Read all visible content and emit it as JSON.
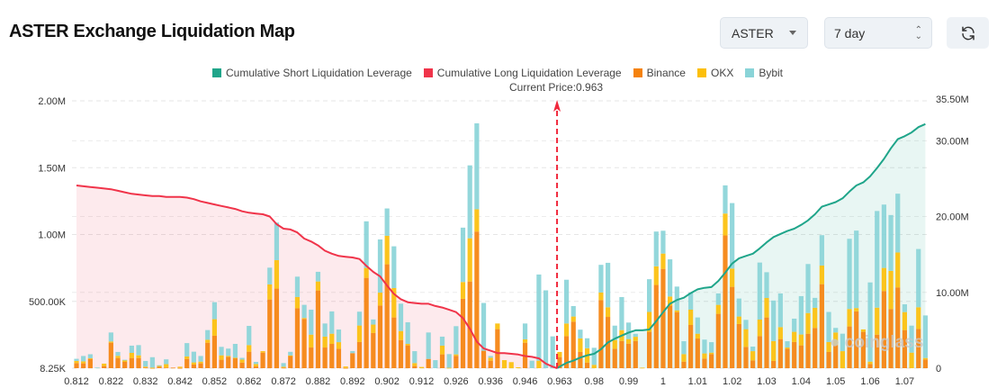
{
  "header": {
    "title": "ASTER Exchange Liquidation Map"
  },
  "controls": {
    "coin_select": {
      "value": "ASTER"
    },
    "range_select": {
      "value": "7 day"
    },
    "refresh_icon": "refresh-icon"
  },
  "watermark": "coinglass",
  "chart_data": {
    "type": "bar",
    "stacked": true,
    "title": "",
    "legend": {
      "placement": "top-center",
      "items": [
        {
          "name": "Cumulative Short Liquidation Leverage",
          "color": "#1fa58a"
        },
        {
          "name": "Cumulative Long Liquidation Leverage",
          "color": "#f0344a"
        },
        {
          "name": "Binance",
          "color": "#f5820d"
        },
        {
          "name": "OKX",
          "color": "#fcbf0a"
        },
        {
          "name": "Bybit",
          "color": "#8ad4d8"
        }
      ]
    },
    "current_price_label": "Current Price:0.963",
    "current_price": 0.963,
    "x_tick_labels": [
      "0.812",
      "0.822",
      "0.832",
      "0.842",
      "0.852",
      "0.862",
      "0.872",
      "0.882",
      "0.892",
      "0.902",
      "0.912",
      "0.926",
      "0.936",
      "0.946",
      "0.963",
      "0.98",
      "0.99",
      "1",
      "1.01",
      "1.02",
      "1.03",
      "1.04",
      "1.05",
      "1.06",
      "1.07"
    ],
    "y_left": {
      "ticks": [
        "8.25K",
        "500.00K",
        "1.00M",
        "1.50M",
        "2.00M"
      ],
      "range": [
        8250,
        2000000
      ]
    },
    "y_right": {
      "ticks": [
        "0",
        "10.00M",
        "20.00M",
        "30.00M",
        "35.50M"
      ],
      "range": [
        0,
        35500000
      ]
    },
    "grid": true,
    "series": [
      {
        "name": "Binance",
        "values": [
          38000,
          36000,
          69000,
          0,
          16000,
          190000,
          76000,
          47000,
          76000,
          76000,
          5000,
          2000,
          11000,
          5000,
          4000,
          2000,
          69000,
          27000,
          36000,
          190000,
          242000,
          63000,
          85000,
          76000,
          42000,
          123000,
          13000,
          116000,
          512000,
          593000,
          4000,
          92000,
          447000,
          367000,
          154000,
          579000,
          154000,
          181000,
          145000,
          2000,
          112000,
          195000,
          673000,
          262000,
          467000,
          774000,
          378000,
          210000,
          170000,
          16000,
          0,
          69000,
          0,
          103000,
          0,
          92000,
          517000,
          646000,
          1018000,
          130000,
          56000,
          291000,
          0,
          0,
          0,
          190000,
          0,
          0,
          0,
          0,
          83000,
          239000,
          347000,
          121000,
          42000,
          0,
          508000,
          382000,
          145000,
          203000,
          183000,
          203000,
          0,
          271000,
          620000,
          740000,
          467000,
          418000,
          49000,
          322000,
          221000,
          72000,
          105000,
          405000,
          989000,
          606000,
          329000,
          159000,
          58000,
          239000,
          378000,
          54000,
          217000,
          145000,
          195000,
          170000,
          257000,
          300000,
          626000,
          121000,
          172000,
          0,
          311000,
          423000,
          271000,
          31000,
          250000,
          575000,
          441000,
          602000,
          284000,
          0,
          293000,
          65000
        ]
      },
      {
        "name": "OKX",
        "values": [
          16000,
          15000,
          5000,
          0,
          18000,
          9000,
          16000,
          13000,
          38000,
          20000,
          7000,
          2000,
          9000,
          25000,
          0,
          9000,
          18000,
          16000,
          13000,
          22000,
          123000,
          33000,
          7000,
          2000,
          22000,
          49000,
          18000,
          11000,
          112000,
          212000,
          7000,
          3000,
          83000,
          7000,
          96000,
          67000,
          81000,
          76000,
          49000,
          11000,
          0,
          123000,
          74000,
          63000,
          96000,
          212000,
          219000,
          67000,
          11000,
          22000,
          9000,
          0,
          0,
          65000,
          3000,
          11000,
          125000,
          322000,
          166000,
          0,
          22000,
          42000,
          60000,
          45000,
          7000,
          25000,
          0,
          56000,
          0,
          0,
          38000,
          94000,
          38000,
          101000,
          107000,
          25000,
          56000,
          72000,
          65000,
          81000,
          34000,
          31000,
          4000,
          148000,
          139000,
          114000,
          67000,
          13000,
          56000,
          114000,
          36000,
          38000,
          11000,
          67000,
          163000,
          136000,
          56000,
          132000,
          69000,
          123000,
          145000,
          148000,
          89000,
          9000,
          76000,
          81000,
          154000,
          150000,
          139000,
          74000,
          94000,
          127000,
          130000,
          25000,
          18000,
          18000,
          201000,
          172000,
          284000,
          260000,
          134000,
          116000,
          161000,
          11000
        ]
      },
      {
        "name": "Bybit",
        "values": [
          16000,
          40000,
          30000,
          5000,
          0,
          67000,
          29000,
          3000,
          54000,
          76000,
          42000,
          78000,
          2000,
          36000,
          0,
          0,
          100000,
          80000,
          42000,
          72000,
          127000,
          63000,
          54000,
          103000,
          13000,
          143000,
          16000,
          0,
          125000,
          280000,
          27000,
          27000,
          152000,
          98000,
          186000,
          72000,
          98000,
          166000,
          94000,
          0,
          16000,
          103000,
          347000,
          38000,
          396000,
          204000,
          311000,
          204000,
          161000,
          89000,
          0,
          197000,
          60000,
          67000,
          102000,
          210000,
          405000,
          543000,
          640000,
          356000,
          13000,
          0,
          0,
          0,
          0,
          118000,
          56000,
          642000,
          580000,
          237000,
          0,
          326000,
          78000,
          65000,
          74000,
          127000,
          206000,
          331000,
          107000,
          246000,
          123000,
          22000,
          0,
          244000,
          259000,
          170000,
          277000,
          177000,
          96000,
          127000,
          121000,
          103000,
          78000,
          85000,
          210000,
          488000,
          134000,
          69000,
          34000,
          425000,
          192000,
          302000,
          251000,
          47000,
          98000,
          286000,
          365000,
          74000,
          226000,
          224000,
          34000,
          130000,
          523000,
          577000,
          0,
          590000,
          720000,
          472000,
          416000,
          438000,
          58000,
          201000,
          434000,
          317000
        ]
      },
      {
        "name": "Cumulative Long Liquidation Leverage",
        "axis": "right",
        "values": [
          24100000,
          24000000,
          23900000,
          23800000,
          23700000,
          23600000,
          23400000,
          23200000,
          23000000,
          22900000,
          22800000,
          22700000,
          22700000,
          22600000,
          22600000,
          22600000,
          22500000,
          22300000,
          22000000,
          21800000,
          21600000,
          21400000,
          21200000,
          21000000,
          20700000,
          20500000,
          20400000,
          20300000,
          20000000,
          19000000,
          18400000,
          18300000,
          17900000,
          17100000,
          16700000,
          16200000,
          15500000,
          15100000,
          14800000,
          14700000,
          14600000,
          14400000,
          13500000,
          12700000,
          12100000,
          10900000,
          9800000,
          9100000,
          8700000,
          8600000,
          8500000,
          8500000,
          8200000,
          8000000,
          7700000,
          7400000,
          6600000,
          5200000,
          3500000,
          2600000,
          2300000,
          2000000,
          2000000,
          1900000,
          1800000,
          1600000,
          1500000,
          1300000,
          600000,
          200000
        ]
      },
      {
        "name": "Cumulative Short Liquidation Leverage",
        "axis": "right",
        "values": [
          200000,
          700000,
          1000000,
          1400000,
          1700000,
          1900000,
          2500000,
          3400000,
          3900000,
          4300000,
          4700000,
          5000000,
          5000000,
          5100000,
          6200000,
          7400000,
          8500000,
          9000000,
          9300000,
          9900000,
          10400000,
          10600000,
          10700000,
          11500000,
          12600000,
          13800000,
          14500000,
          14800000,
          15100000,
          15800000,
          16600000,
          17300000,
          17700000,
          18100000,
          18400000,
          18900000,
          19500000,
          20300000,
          21300000,
          21600000,
          21900000,
          22400000,
          23300000,
          24100000,
          24500000,
          25300000,
          26400000,
          27600000,
          29000000,
          30200000,
          30600000,
          31100000,
          31800000,
          32200000
        ]
      }
    ]
  }
}
